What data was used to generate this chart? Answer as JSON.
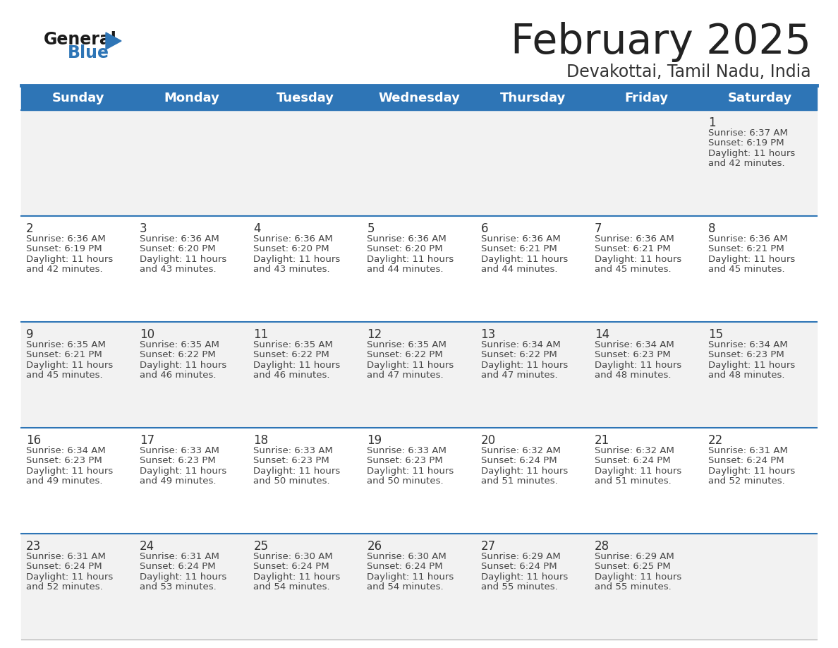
{
  "title": "February 2025",
  "subtitle": "Devakottai, Tamil Nadu, India",
  "days_of_week": [
    "Sunday",
    "Monday",
    "Tuesday",
    "Wednesday",
    "Thursday",
    "Friday",
    "Saturday"
  ],
  "header_bg": "#2e75b6",
  "header_text_color": "#ffffff",
  "row_bg_odd": "#f2f2f2",
  "row_bg_even": "#ffffff",
  "cell_text_color": "#444444",
  "day_number_color": "#333333",
  "separator_color": "#2e75b6",
  "title_color": "#222222",
  "subtitle_color": "#333333",
  "logo_general_color": "#1a1a1a",
  "logo_blue_color": "#2e75b6",
  "calendar_data": [
    [
      null,
      null,
      null,
      null,
      null,
      null,
      {
        "day": 1,
        "sunrise": "6:37 AM",
        "sunset": "6:19 PM",
        "daylight_line1": "Daylight: 11 hours",
        "daylight_line2": "and 42 minutes."
      }
    ],
    [
      {
        "day": 2,
        "sunrise": "6:36 AM",
        "sunset": "6:19 PM",
        "daylight_line1": "Daylight: 11 hours",
        "daylight_line2": "and 42 minutes."
      },
      {
        "day": 3,
        "sunrise": "6:36 AM",
        "sunset": "6:20 PM",
        "daylight_line1": "Daylight: 11 hours",
        "daylight_line2": "and 43 minutes."
      },
      {
        "day": 4,
        "sunrise": "6:36 AM",
        "sunset": "6:20 PM",
        "daylight_line1": "Daylight: 11 hours",
        "daylight_line2": "and 43 minutes."
      },
      {
        "day": 5,
        "sunrise": "6:36 AM",
        "sunset": "6:20 PM",
        "daylight_line1": "Daylight: 11 hours",
        "daylight_line2": "and 44 minutes."
      },
      {
        "day": 6,
        "sunrise": "6:36 AM",
        "sunset": "6:21 PM",
        "daylight_line1": "Daylight: 11 hours",
        "daylight_line2": "and 44 minutes."
      },
      {
        "day": 7,
        "sunrise": "6:36 AM",
        "sunset": "6:21 PM",
        "daylight_line1": "Daylight: 11 hours",
        "daylight_line2": "and 45 minutes."
      },
      {
        "day": 8,
        "sunrise": "6:36 AM",
        "sunset": "6:21 PM",
        "daylight_line1": "Daylight: 11 hours",
        "daylight_line2": "and 45 minutes."
      }
    ],
    [
      {
        "day": 9,
        "sunrise": "6:35 AM",
        "sunset": "6:21 PM",
        "daylight_line1": "Daylight: 11 hours",
        "daylight_line2": "and 45 minutes."
      },
      {
        "day": 10,
        "sunrise": "6:35 AM",
        "sunset": "6:22 PM",
        "daylight_line1": "Daylight: 11 hours",
        "daylight_line2": "and 46 minutes."
      },
      {
        "day": 11,
        "sunrise": "6:35 AM",
        "sunset": "6:22 PM",
        "daylight_line1": "Daylight: 11 hours",
        "daylight_line2": "and 46 minutes."
      },
      {
        "day": 12,
        "sunrise": "6:35 AM",
        "sunset": "6:22 PM",
        "daylight_line1": "Daylight: 11 hours",
        "daylight_line2": "and 47 minutes."
      },
      {
        "day": 13,
        "sunrise": "6:34 AM",
        "sunset": "6:22 PM",
        "daylight_line1": "Daylight: 11 hours",
        "daylight_line2": "and 47 minutes."
      },
      {
        "day": 14,
        "sunrise": "6:34 AM",
        "sunset": "6:23 PM",
        "daylight_line1": "Daylight: 11 hours",
        "daylight_line2": "and 48 minutes."
      },
      {
        "day": 15,
        "sunrise": "6:34 AM",
        "sunset": "6:23 PM",
        "daylight_line1": "Daylight: 11 hours",
        "daylight_line2": "and 48 minutes."
      }
    ],
    [
      {
        "day": 16,
        "sunrise": "6:34 AM",
        "sunset": "6:23 PM",
        "daylight_line1": "Daylight: 11 hours",
        "daylight_line2": "and 49 minutes."
      },
      {
        "day": 17,
        "sunrise": "6:33 AM",
        "sunset": "6:23 PM",
        "daylight_line1": "Daylight: 11 hours",
        "daylight_line2": "and 49 minutes."
      },
      {
        "day": 18,
        "sunrise": "6:33 AM",
        "sunset": "6:23 PM",
        "daylight_line1": "Daylight: 11 hours",
        "daylight_line2": "and 50 minutes."
      },
      {
        "day": 19,
        "sunrise": "6:33 AM",
        "sunset": "6:23 PM",
        "daylight_line1": "Daylight: 11 hours",
        "daylight_line2": "and 50 minutes."
      },
      {
        "day": 20,
        "sunrise": "6:32 AM",
        "sunset": "6:24 PM",
        "daylight_line1": "Daylight: 11 hours",
        "daylight_line2": "and 51 minutes."
      },
      {
        "day": 21,
        "sunrise": "6:32 AM",
        "sunset": "6:24 PM",
        "daylight_line1": "Daylight: 11 hours",
        "daylight_line2": "and 51 minutes."
      },
      {
        "day": 22,
        "sunrise": "6:31 AM",
        "sunset": "6:24 PM",
        "daylight_line1": "Daylight: 11 hours",
        "daylight_line2": "and 52 minutes."
      }
    ],
    [
      {
        "day": 23,
        "sunrise": "6:31 AM",
        "sunset": "6:24 PM",
        "daylight_line1": "Daylight: 11 hours",
        "daylight_line2": "and 52 minutes."
      },
      {
        "day": 24,
        "sunrise": "6:31 AM",
        "sunset": "6:24 PM",
        "daylight_line1": "Daylight: 11 hours",
        "daylight_line2": "and 53 minutes."
      },
      {
        "day": 25,
        "sunrise": "6:30 AM",
        "sunset": "6:24 PM",
        "daylight_line1": "Daylight: 11 hours",
        "daylight_line2": "and 54 minutes."
      },
      {
        "day": 26,
        "sunrise": "6:30 AM",
        "sunset": "6:24 PM",
        "daylight_line1": "Daylight: 11 hours",
        "daylight_line2": "and 54 minutes."
      },
      {
        "day": 27,
        "sunrise": "6:29 AM",
        "sunset": "6:24 PM",
        "daylight_line1": "Daylight: 11 hours",
        "daylight_line2": "and 55 minutes."
      },
      {
        "day": 28,
        "sunrise": "6:29 AM",
        "sunset": "6:25 PM",
        "daylight_line1": "Daylight: 11 hours",
        "daylight_line2": "and 55 minutes."
      },
      null
    ]
  ]
}
